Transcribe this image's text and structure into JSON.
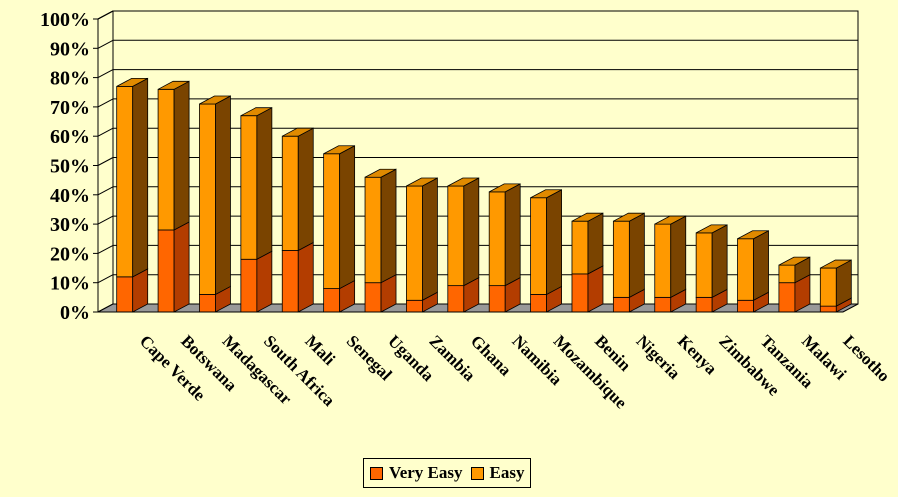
{
  "chart_data": {
    "type": "bar",
    "stacked": true,
    "three_d": true,
    "categories": [
      "Cape Verde",
      "Botswana",
      "Madagascar",
      "South Africa",
      "Mali",
      "Senegal",
      "Uganda",
      "Zambia",
      "Ghana",
      "Namibia",
      "Mozambique",
      "Benin",
      "Nigeria",
      "Kenya",
      "Zimbabwe",
      "Tanzania",
      "Malawi",
      "Lesotho"
    ],
    "series": [
      {
        "name": "Very Easy",
        "color": "#FF6600",
        "values": [
          12,
          28,
          6,
          18,
          21,
          8,
          10,
          4,
          9,
          9,
          6,
          13,
          5,
          5,
          5,
          4,
          10,
          2
        ]
      },
      {
        "name": "Easy",
        "color": "#FF9900",
        "values": [
          65,
          48,
          65,
          49,
          39,
          46,
          36,
          39,
          34,
          32,
          33,
          18,
          26,
          25,
          22,
          21,
          6,
          13
        ]
      }
    ],
    "y_ticks": [
      "0%",
      "10%",
      "20%",
      "30%",
      "40%",
      "50%",
      "60%",
      "70%",
      "80%",
      "90%",
      "100%"
    ],
    "ylim": [
      0,
      100
    ],
    "grid": true,
    "legend_position": "bottom"
  },
  "colors": {
    "background": "#FFFFCC",
    "very_easy_side": "#B33D00",
    "easy_side": "#7A4400",
    "easy_top": "#E08A00",
    "floor": "#999999"
  }
}
